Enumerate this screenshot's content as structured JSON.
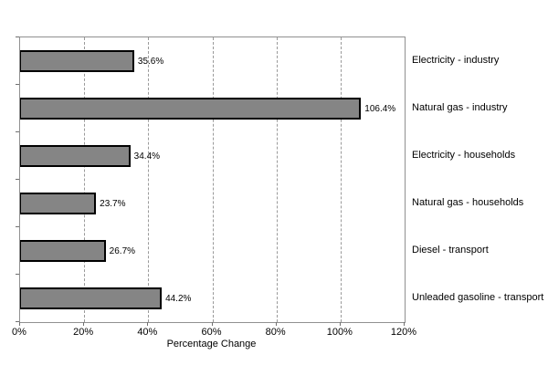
{
  "chart_data": {
    "type": "bar",
    "orientation": "horizontal",
    "title": "",
    "xlabel": "Percentage Change",
    "ylabel": "",
    "xlim": [
      0,
      120
    ],
    "grid": "vertical-dashed",
    "legend": "none",
    "categories": [
      "Electricity - industry",
      "Natural gas - industry",
      "Electricity - households",
      "Natural gas - households",
      "Diesel - transport",
      "Unleaded gasoline - transport"
    ],
    "values": [
      35.6,
      106.4,
      34.4,
      23.7,
      26.7,
      44.2
    ],
    "value_labels": [
      "35.6%",
      "106.4%",
      "34.4%",
      "23.7%",
      "26.7%",
      "44.2%"
    ],
    "x_ticks": [
      {
        "value": 0,
        "label": "0%"
      },
      {
        "value": 20,
        "label": "20%"
      },
      {
        "value": 40,
        "label": "40%"
      },
      {
        "value": 60,
        "label": "60%"
      },
      {
        "value": 80,
        "label": "80%"
      },
      {
        "value": 100,
        "label": "100%"
      },
      {
        "value": 120,
        "label": "120%"
      }
    ],
    "colors": {
      "bar_fill": "#858585",
      "bar_border": "#000000",
      "gridline": "#9a9a9a",
      "plot_border": "#909090",
      "background": "#ffffff",
      "text": "#000000"
    }
  }
}
